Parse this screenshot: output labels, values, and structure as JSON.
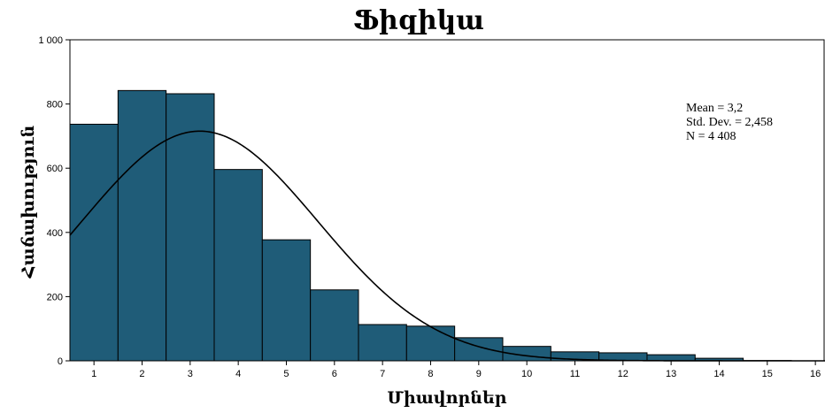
{
  "chart_data": {
    "type": "bar",
    "title": "Ֆիզիկա",
    "xlabel": "Միավորներ",
    "ylabel": "Հաճախություն",
    "xlim": [
      0.5,
      16.2
    ],
    "ylim": [
      0,
      1000
    ],
    "x_ticks": [
      1,
      2,
      3,
      4,
      5,
      6,
      7,
      8,
      9,
      10,
      11,
      12,
      13,
      14,
      15,
      16
    ],
    "y_ticks": [
      0,
      200,
      400,
      600,
      800,
      1000
    ],
    "y_tick_labels": [
      "0",
      "200",
      "400",
      "600",
      "800",
      "1 000"
    ],
    "bins": [
      1,
      2,
      3,
      4,
      5,
      6,
      7,
      8,
      9,
      10,
      11,
      12,
      13,
      14,
      15,
      16
    ],
    "values": [
      737,
      842,
      832,
      596,
      377,
      221,
      113,
      108,
      72,
      45,
      28,
      25,
      19,
      8,
      1,
      0
    ],
    "normal_curve": {
      "mean": 3.2,
      "sd": 2.458,
      "n": 4408,
      "bin_width": 1
    },
    "stats_text": [
      "Mean = 3,2",
      "Std. Dev. = 2,458",
      "N = 4 408"
    ],
    "bar_color": "#1f5c78",
    "grid": false,
    "stats_placement": "top-right"
  }
}
